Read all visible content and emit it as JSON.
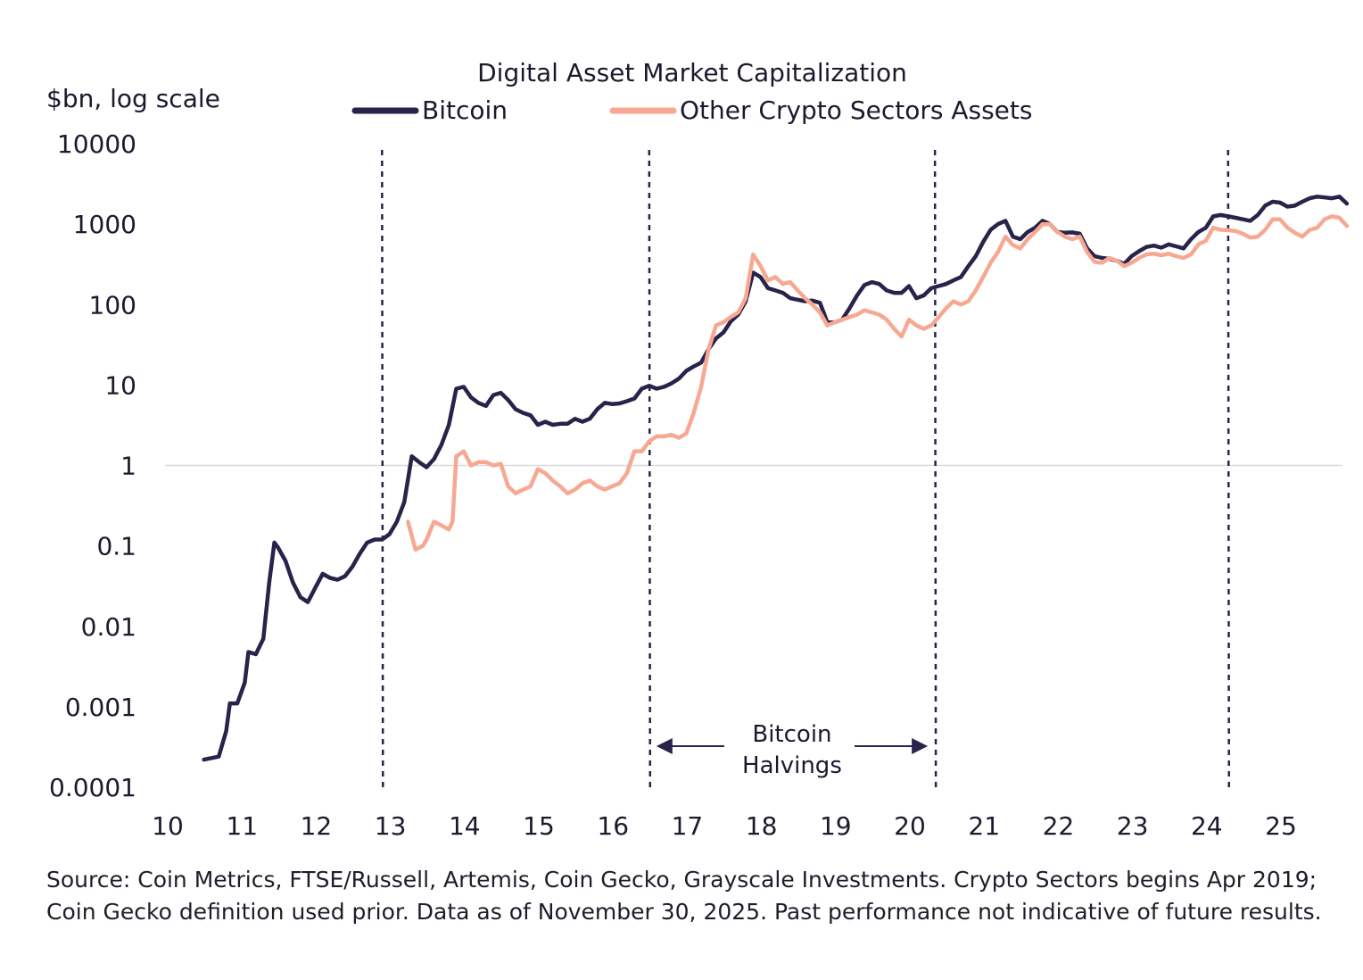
{
  "chart_data": {
    "type": "line",
    "title": "Digital Asset Market Capitalization",
    "ylabel": "$bn, log scale",
    "yscale": "log",
    "ylim": [
      0.0001,
      10000
    ],
    "y_ticks": [
      "10000",
      "1000",
      "100",
      "10",
      "1",
      "0.1",
      "0.01",
      "0.001",
      "0.0001"
    ],
    "y_tick_values": [
      10000,
      1000,
      100,
      10,
      1,
      0.1,
      0.01,
      0.001,
      0.0001
    ],
    "xlim": [
      2010,
      2025.9
    ],
    "x_ticks": [
      "10",
      "11",
      "12",
      "13",
      "14",
      "15",
      "16",
      "17",
      "18",
      "19",
      "20",
      "21",
      "22",
      "23",
      "24",
      "25"
    ],
    "reference_line": 1,
    "halvings": [
      2012.9,
      2016.5,
      2020.35,
      2024.3
    ],
    "annotation": {
      "line1": "Bitcoin",
      "line2": "Halvings",
      "from": 2016.5,
      "to": 2020.35,
      "y": 0.0003
    },
    "series": [
      {
        "name": "Bitcoin",
        "color": "#28234a",
        "points": [
          [
            2010.5,
            0.00022
          ],
          [
            2010.7,
            0.00024
          ],
          [
            2010.8,
            0.0005
          ],
          [
            2010.85,
            0.0011
          ],
          [
            2010.95,
            0.0011
          ],
          [
            2011.05,
            0.002
          ],
          [
            2011.1,
            0.0048
          ],
          [
            2011.2,
            0.0045
          ],
          [
            2011.3,
            0.007
          ],
          [
            2011.38,
            0.035
          ],
          [
            2011.45,
            0.11
          ],
          [
            2011.5,
            0.095
          ],
          [
            2011.6,
            0.065
          ],
          [
            2011.7,
            0.035
          ],
          [
            2011.8,
            0.023
          ],
          [
            2011.9,
            0.02
          ],
          [
            2012.0,
            0.03
          ],
          [
            2012.1,
            0.045
          ],
          [
            2012.2,
            0.04
          ],
          [
            2012.3,
            0.038
          ],
          [
            2012.4,
            0.042
          ],
          [
            2012.5,
            0.055
          ],
          [
            2012.6,
            0.08
          ],
          [
            2012.7,
            0.11
          ],
          [
            2012.8,
            0.12
          ],
          [
            2012.9,
            0.12
          ],
          [
            2013.0,
            0.14
          ],
          [
            2013.1,
            0.2
          ],
          [
            2013.2,
            0.35
          ],
          [
            2013.3,
            1.3
          ],
          [
            2013.4,
            1.1
          ],
          [
            2013.5,
            0.95
          ],
          [
            2013.6,
            1.2
          ],
          [
            2013.7,
            1.8
          ],
          [
            2013.8,
            3.2
          ],
          [
            2013.9,
            9.0
          ],
          [
            2014.0,
            9.5
          ],
          [
            2014.1,
            7.0
          ],
          [
            2014.2,
            6.0
          ],
          [
            2014.3,
            5.5
          ],
          [
            2014.4,
            7.5
          ],
          [
            2014.5,
            8.0
          ],
          [
            2014.6,
            6.5
          ],
          [
            2014.7,
            5.0
          ],
          [
            2014.8,
            4.5
          ],
          [
            2014.9,
            4.2
          ],
          [
            2015.0,
            3.2
          ],
          [
            2015.1,
            3.5
          ],
          [
            2015.2,
            3.2
          ],
          [
            2015.3,
            3.3
          ],
          [
            2015.4,
            3.3
          ],
          [
            2015.5,
            3.8
          ],
          [
            2015.6,
            3.5
          ],
          [
            2015.7,
            3.8
          ],
          [
            2015.8,
            5.0
          ],
          [
            2015.9,
            6.0
          ],
          [
            2016.0,
            5.8
          ],
          [
            2016.1,
            5.9
          ],
          [
            2016.2,
            6.3
          ],
          [
            2016.3,
            6.8
          ],
          [
            2016.4,
            9.0
          ],
          [
            2016.5,
            9.8
          ],
          [
            2016.6,
            9.0
          ],
          [
            2016.7,
            9.5
          ],
          [
            2016.8,
            10.5
          ],
          [
            2016.9,
            12.0
          ],
          [
            2017.0,
            15.0
          ],
          [
            2017.1,
            17.0
          ],
          [
            2017.2,
            19.0
          ],
          [
            2017.3,
            28.0
          ],
          [
            2017.4,
            38.0
          ],
          [
            2017.5,
            45.0
          ],
          [
            2017.6,
            62.0
          ],
          [
            2017.7,
            75.0
          ],
          [
            2017.8,
            110.0
          ],
          [
            2017.9,
            250.0
          ],
          [
            2018.0,
            220.0
          ],
          [
            2018.1,
            160.0
          ],
          [
            2018.2,
            150.0
          ],
          [
            2018.3,
            140.0
          ],
          [
            2018.4,
            120.0
          ],
          [
            2018.5,
            115.0
          ],
          [
            2018.6,
            110.0
          ],
          [
            2018.7,
            112.0
          ],
          [
            2018.8,
            105.0
          ],
          [
            2018.9,
            60.0
          ],
          [
            2019.0,
            60.0
          ],
          [
            2019.1,
            65.0
          ],
          [
            2019.2,
            90.0
          ],
          [
            2019.3,
            130.0
          ],
          [
            2019.4,
            175.0
          ],
          [
            2019.5,
            190.0
          ],
          [
            2019.6,
            180.0
          ],
          [
            2019.7,
            150.0
          ],
          [
            2019.8,
            140.0
          ],
          [
            2019.9,
            140.0
          ],
          [
            2020.0,
            170.0
          ],
          [
            2020.1,
            120.0
          ],
          [
            2020.2,
            130.0
          ],
          [
            2020.3,
            160.0
          ],
          [
            2020.4,
            170.0
          ],
          [
            2020.5,
            180.0
          ],
          [
            2020.6,
            200.0
          ],
          [
            2020.7,
            220.0
          ],
          [
            2020.8,
            300.0
          ],
          [
            2020.9,
            400.0
          ],
          [
            2021.0,
            600.0
          ],
          [
            2021.1,
            850.0
          ],
          [
            2021.2,
            1000.0
          ],
          [
            2021.3,
            1100.0
          ],
          [
            2021.4,
            700.0
          ],
          [
            2021.5,
            650.0
          ],
          [
            2021.6,
            800.0
          ],
          [
            2021.7,
            900.0
          ],
          [
            2021.8,
            1100.0
          ],
          [
            2021.9,
            1000.0
          ],
          [
            2022.0,
            800.0
          ],
          [
            2022.1,
            780.0
          ],
          [
            2022.2,
            790.0
          ],
          [
            2022.3,
            760.0
          ],
          [
            2022.4,
            500.0
          ],
          [
            2022.5,
            400.0
          ],
          [
            2022.6,
            380.0
          ],
          [
            2022.7,
            370.0
          ],
          [
            2022.8,
            350.0
          ],
          [
            2022.9,
            320.0
          ],
          [
            2023.0,
            400.0
          ],
          [
            2023.1,
            460.0
          ],
          [
            2023.2,
            520.0
          ],
          [
            2023.3,
            540.0
          ],
          [
            2023.4,
            510.0
          ],
          [
            2023.5,
            560.0
          ],
          [
            2023.6,
            530.0
          ],
          [
            2023.7,
            500.0
          ],
          [
            2023.8,
            650.0
          ],
          [
            2023.9,
            800.0
          ],
          [
            2024.0,
            900.0
          ],
          [
            2024.1,
            1250.0
          ],
          [
            2024.2,
            1300.0
          ],
          [
            2024.3,
            1250.0
          ],
          [
            2024.4,
            1200.0
          ],
          [
            2024.5,
            1150.0
          ],
          [
            2024.6,
            1100.0
          ],
          [
            2024.7,
            1300.0
          ],
          [
            2024.8,
            1700.0
          ],
          [
            2024.9,
            1900.0
          ],
          [
            2025.0,
            1850.0
          ],
          [
            2025.1,
            1650.0
          ],
          [
            2025.2,
            1700.0
          ],
          [
            2025.3,
            1900.0
          ],
          [
            2025.4,
            2100.0
          ],
          [
            2025.5,
            2200.0
          ],
          [
            2025.6,
            2150.0
          ],
          [
            2025.7,
            2100.0
          ],
          [
            2025.8,
            2200.0
          ],
          [
            2025.9,
            1800.0
          ]
        ]
      },
      {
        "name": "Other Crypto Sectors Assets",
        "color": "#f7a892",
        "points": [
          [
            2013.25,
            0.2
          ],
          [
            2013.35,
            0.09
          ],
          [
            2013.45,
            0.1
          ],
          [
            2013.5,
            0.12
          ],
          [
            2013.6,
            0.2
          ],
          [
            2013.7,
            0.18
          ],
          [
            2013.8,
            0.16
          ],
          [
            2013.85,
            0.2
          ],
          [
            2013.9,
            1.3
          ],
          [
            2014.0,
            1.5
          ],
          [
            2014.1,
            1.0
          ],
          [
            2014.2,
            1.1
          ],
          [
            2014.3,
            1.1
          ],
          [
            2014.4,
            1.0
          ],
          [
            2014.5,
            1.05
          ],
          [
            2014.6,
            0.55
          ],
          [
            2014.7,
            0.45
          ],
          [
            2014.8,
            0.5
          ],
          [
            2014.9,
            0.55
          ],
          [
            2015.0,
            0.9
          ],
          [
            2015.1,
            0.8
          ],
          [
            2015.2,
            0.65
          ],
          [
            2015.3,
            0.55
          ],
          [
            2015.4,
            0.45
          ],
          [
            2015.5,
            0.5
          ],
          [
            2015.6,
            0.6
          ],
          [
            2015.7,
            0.65
          ],
          [
            2015.8,
            0.55
          ],
          [
            2015.9,
            0.5
          ],
          [
            2016.0,
            0.55
          ],
          [
            2016.1,
            0.6
          ],
          [
            2016.2,
            0.8
          ],
          [
            2016.3,
            1.5
          ],
          [
            2016.4,
            1.5
          ],
          [
            2016.5,
            2.0
          ],
          [
            2016.6,
            2.3
          ],
          [
            2016.7,
            2.3
          ],
          [
            2016.8,
            2.4
          ],
          [
            2016.9,
            2.2
          ],
          [
            2017.0,
            2.5
          ],
          [
            2017.1,
            4.5
          ],
          [
            2017.2,
            9.5
          ],
          [
            2017.3,
            28.0
          ],
          [
            2017.4,
            55.0
          ],
          [
            2017.5,
            60.0
          ],
          [
            2017.6,
            70.0
          ],
          [
            2017.7,
            80.0
          ],
          [
            2017.8,
            120.0
          ],
          [
            2017.9,
            420.0
          ],
          [
            2018.0,
            300.0
          ],
          [
            2018.1,
            200.0
          ],
          [
            2018.2,
            220.0
          ],
          [
            2018.3,
            180.0
          ],
          [
            2018.4,
            190.0
          ],
          [
            2018.5,
            150.0
          ],
          [
            2018.6,
            120.0
          ],
          [
            2018.7,
            100.0
          ],
          [
            2018.8,
            80.0
          ],
          [
            2018.9,
            55.0
          ],
          [
            2019.0,
            60.0
          ],
          [
            2019.1,
            65.0
          ],
          [
            2019.2,
            70.0
          ],
          [
            2019.3,
            75.0
          ],
          [
            2019.4,
            85.0
          ],
          [
            2019.5,
            80.0
          ],
          [
            2019.6,
            75.0
          ],
          [
            2019.7,
            65.0
          ],
          [
            2019.8,
            50.0
          ],
          [
            2019.9,
            40.0
          ],
          [
            2020.0,
            65.0
          ],
          [
            2020.1,
            55.0
          ],
          [
            2020.2,
            50.0
          ],
          [
            2020.3,
            55.0
          ],
          [
            2020.4,
            70.0
          ],
          [
            2020.5,
            90.0
          ],
          [
            2020.6,
            110.0
          ],
          [
            2020.7,
            100.0
          ],
          [
            2020.8,
            110.0
          ],
          [
            2020.9,
            150.0
          ],
          [
            2021.0,
            220.0
          ],
          [
            2021.1,
            330.0
          ],
          [
            2021.2,
            450.0
          ],
          [
            2021.3,
            700.0
          ],
          [
            2021.4,
            550.0
          ],
          [
            2021.5,
            500.0
          ],
          [
            2021.6,
            650.0
          ],
          [
            2021.7,
            800.0
          ],
          [
            2021.8,
            1000.0
          ],
          [
            2021.9,
            1000.0
          ],
          [
            2022.0,
            800.0
          ],
          [
            2022.1,
            700.0
          ],
          [
            2022.2,
            650.0
          ],
          [
            2022.3,
            700.0
          ],
          [
            2022.4,
            450.0
          ],
          [
            2022.5,
            340.0
          ],
          [
            2022.6,
            330.0
          ],
          [
            2022.7,
            380.0
          ],
          [
            2022.8,
            350.0
          ],
          [
            2022.9,
            300.0
          ],
          [
            2023.0,
            330.0
          ],
          [
            2023.1,
            380.0
          ],
          [
            2023.2,
            420.0
          ],
          [
            2023.3,
            430.0
          ],
          [
            2023.4,
            410.0
          ],
          [
            2023.5,
            430.0
          ],
          [
            2023.6,
            400.0
          ],
          [
            2023.7,
            380.0
          ],
          [
            2023.8,
            420.0
          ],
          [
            2023.9,
            560.0
          ],
          [
            2024.0,
            620.0
          ],
          [
            2024.1,
            900.0
          ],
          [
            2024.2,
            850.0
          ],
          [
            2024.3,
            840.0
          ],
          [
            2024.4,
            820.0
          ],
          [
            2024.5,
            760.0
          ],
          [
            2024.6,
            680.0
          ],
          [
            2024.7,
            700.0
          ],
          [
            2024.8,
            850.0
          ],
          [
            2024.9,
            1150.0
          ],
          [
            2025.0,
            1150.0
          ],
          [
            2025.1,
            900.0
          ],
          [
            2025.2,
            780.0
          ],
          [
            2025.3,
            700.0
          ],
          [
            2025.4,
            850.0
          ],
          [
            2025.5,
            900.0
          ],
          [
            2025.6,
            1150.0
          ],
          [
            2025.7,
            1250.0
          ],
          [
            2025.8,
            1200.0
          ],
          [
            2025.9,
            950.0
          ]
        ]
      }
    ]
  },
  "source_note": "Source: Coin Metrics, FTSE/Russell, Artemis, Coin Gecko, Grayscale Investments. Crypto Sectors begins Apr 2019; Coin Gecko definition used prior. Data as of November 30, 2025. Past performance not indicative of future results."
}
